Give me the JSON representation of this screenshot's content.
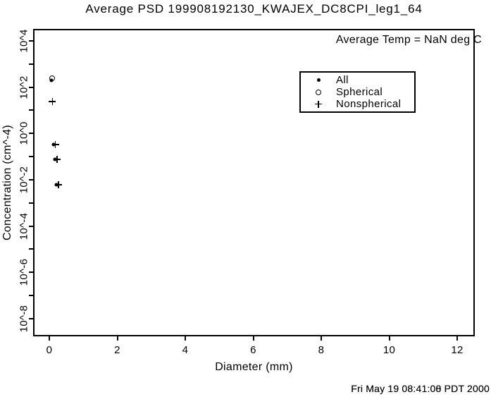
{
  "title": "Average PSD 199908192130_KWAJEX_DC8CPI_leg1_64",
  "annotation": "Average Temp = NaN deg C",
  "legend": {
    "items": [
      {
        "label": "All",
        "marker": "dot"
      },
      {
        "label": "Spherical",
        "marker": "circle"
      },
      {
        "label": "Nonspherical",
        "marker": "plus"
      }
    ]
  },
  "footer": {
    "timestamp": "Fri May 19 08:41:08 PDT 2000",
    "timestamp_overprint": "Fri May 19 08:41:00 PDT 2000"
  },
  "chart_data": {
    "type": "scatter",
    "title": "Average PSD 199908192130_KWAJEX_DC8CPI_leg1_64",
    "xlabel": "Diameter (mm)",
    "ylabel": "Concentration (cm^-4)",
    "x_scale": "linear",
    "y_scale": "log",
    "xlim": [
      0,
      12
    ],
    "ylim_exponents": [
      -8,
      4
    ],
    "x_ticks": [
      0,
      2,
      4,
      6,
      8,
      10,
      12
    ],
    "y_major_tick_exponents": [
      4,
      2,
      0,
      -2,
      -4,
      -6,
      -8
    ],
    "y_tick_labels": [
      "10^4",
      "10^2",
      "10^0",
      "10^-2",
      "10^-4",
      "10^-6",
      "10^-8"
    ],
    "grid": false,
    "legend_position": "upper-right-inside",
    "annotation": "Average Temp = NaN deg C",
    "series": [
      {
        "name": "All",
        "marker": "dot",
        "points": [
          {
            "x": 0.06,
            "y": 204
          },
          {
            "x": 0.12,
            "y": 0.33
          },
          {
            "x": 0.17,
            "y": 0.076
          },
          {
            "x": 0.21,
            "y": 0.0061
          }
        ]
      },
      {
        "name": "Spherical",
        "marker": "circle",
        "points": [
          {
            "x": 0.09,
            "y": 245
          }
        ]
      },
      {
        "name": "Nonspherical",
        "marker": "plus",
        "points": [
          {
            "x": 0.09,
            "y": 24
          },
          {
            "x": 0.18,
            "y": 0.33
          },
          {
            "x": 0.23,
            "y": 0.076
          },
          {
            "x": 0.27,
            "y": 0.0061
          }
        ]
      }
    ]
  }
}
